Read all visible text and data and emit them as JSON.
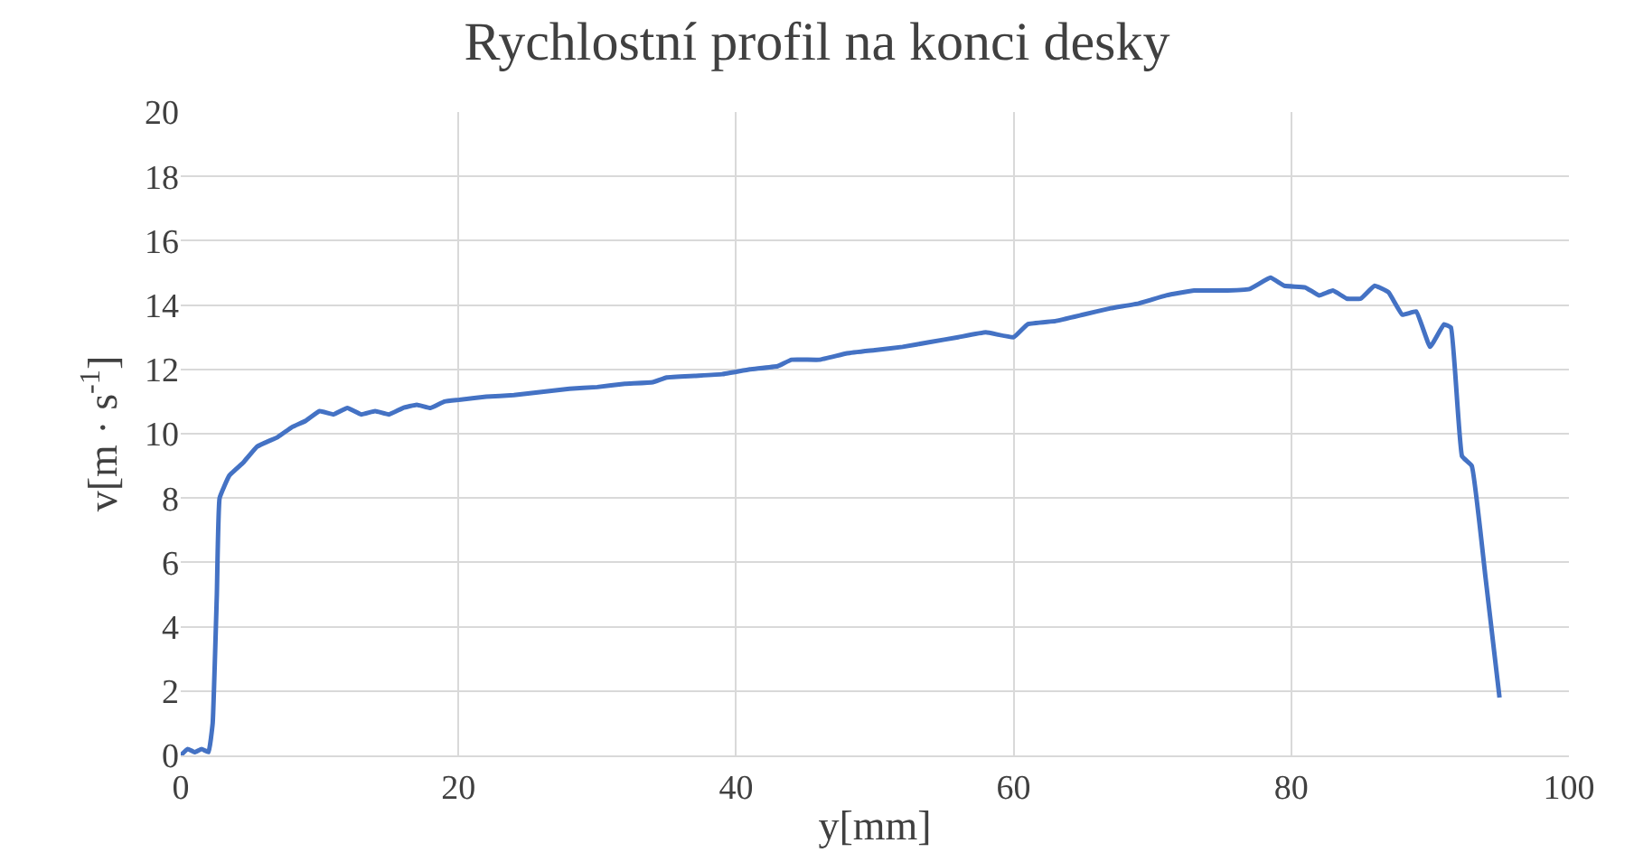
{
  "chart_data": {
    "type": "line",
    "title": "Rychlostní profil na konci desky",
    "xlabel": "y[mm]",
    "ylabel": "v[m · s$^{-1}$]",
    "xlim": [
      0,
      100
    ],
    "xticks": [
      0,
      20,
      40,
      60,
      80,
      100
    ],
    "ylim": [
      0,
      20
    ],
    "yticks": [
      0,
      2,
      4,
      6,
      8,
      10,
      12,
      14,
      16,
      18,
      20
    ],
    "grid": true,
    "marker": "none",
    "line_style": "solid",
    "series": [
      {
        "color": "#4472c4",
        "x": [
          0,
          0.5,
          1,
          1.5,
          2,
          2.3,
          2.6,
          2.8,
          3.5,
          4.5,
          5.5,
          7,
          8,
          9,
          10,
          11,
          12,
          13,
          14,
          15,
          16,
          17,
          18,
          19,
          20,
          22,
          24,
          26,
          28,
          30,
          32,
          34,
          35,
          37,
          39,
          41,
          43,
          44,
          46,
          48,
          50,
          52,
          54,
          56,
          58,
          60,
          61,
          63,
          65,
          67,
          69,
          71,
          73,
          75,
          77,
          78.5,
          79.5,
          81,
          82,
          83,
          84,
          85,
          86,
          87,
          88,
          89,
          90,
          91,
          91.5,
          92.3,
          93,
          94,
          95
        ],
        "values": [
          0,
          0.2,
          0.1,
          0.2,
          0.1,
          1,
          5,
          8,
          8.7,
          9.1,
          9.6,
          9.9,
          10.2,
          10.4,
          10.7,
          10.6,
          10.8,
          10.6,
          10.7,
          10.6,
          10.8,
          10.9,
          10.8,
          11,
          11.05,
          11.15,
          11.2,
          11.3,
          11.4,
          11.45,
          11.55,
          11.6,
          11.75,
          11.8,
          11.85,
          12,
          12.1,
          12.3,
          12.3,
          12.5,
          12.6,
          12.7,
          12.85,
          13,
          13.15,
          13,
          13.4,
          13.5,
          13.7,
          13.9,
          14.05,
          14.3,
          14.45,
          14.45,
          14.5,
          14.85,
          14.6,
          14.55,
          14.3,
          14.45,
          14.2,
          14.2,
          14.6,
          14.4,
          13.7,
          13.8,
          12.7,
          13.4,
          13.3,
          9.3,
          9,
          5.5,
          1.8
        ]
      }
    ]
  }
}
